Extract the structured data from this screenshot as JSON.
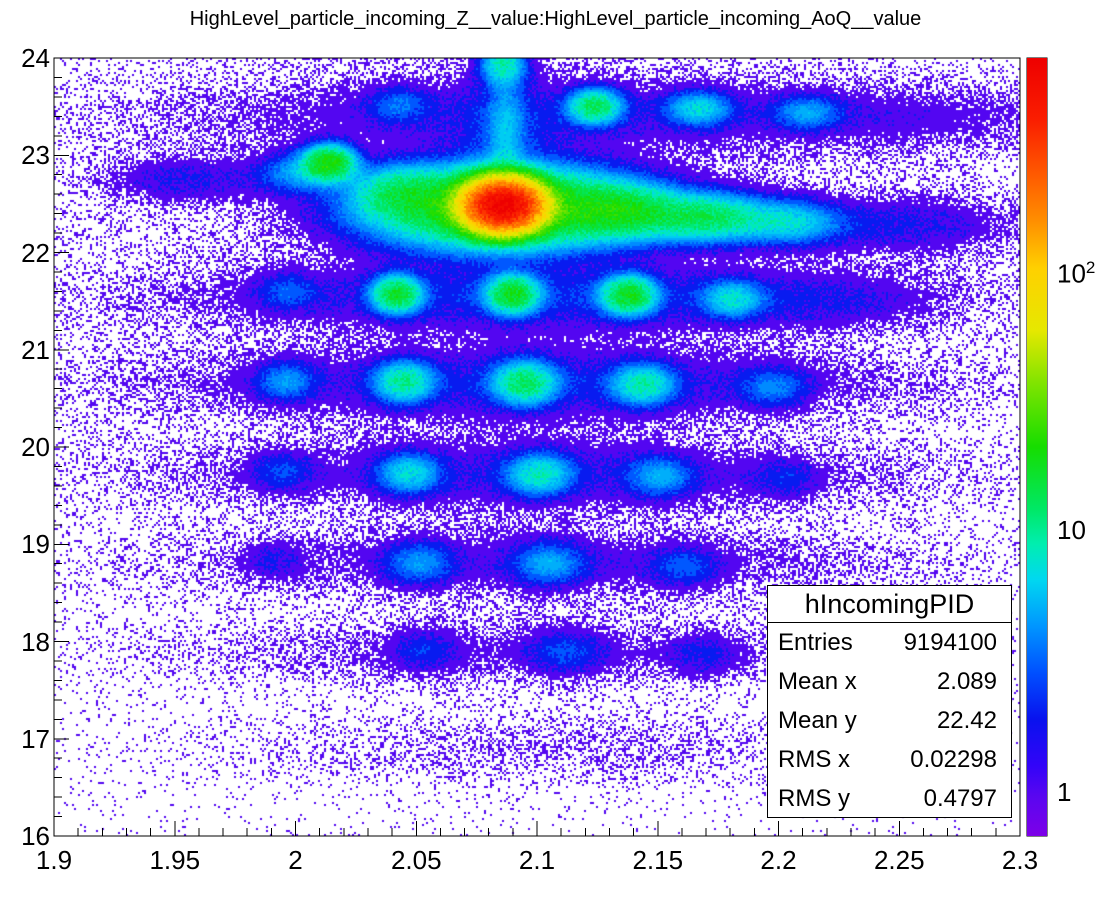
{
  "title": "HighLevel_particle_incoming_Z__value:HighLevel_particle_incoming_AoQ__value",
  "stats_box": {
    "title": "hIncomingPID",
    "rows": [
      {
        "label": "Entries",
        "value": "9194100"
      },
      {
        "label": "Mean x",
        "value": "2.089"
      },
      {
        "label": "Mean y",
        "value": "22.42"
      },
      {
        "label": "RMS x",
        "value": "0.02298"
      },
      {
        "label": "RMS y",
        "value": "0.4797"
      }
    ]
  },
  "chart_data": {
    "type": "heatmap",
    "title": "HighLevel_particle_incoming_Z__value:HighLevel_particle_incoming_AoQ__value",
    "xlabel": "",
    "ylabel": "",
    "x_axis": {
      "min": 1.9,
      "max": 2.3,
      "major_step": 0.05,
      "minor_divisions": 5,
      "labels": [
        "1.9",
        "1.95",
        "2",
        "2.05",
        "2.1",
        "2.15",
        "2.2",
        "2.25",
        "2.3"
      ]
    },
    "y_axis": {
      "min": 16,
      "max": 24,
      "major_step": 1,
      "minor_divisions": 5,
      "labels": [
        "16",
        "17",
        "18",
        "19",
        "20",
        "21",
        "22",
        "23",
        "24"
      ]
    },
    "z_axis": {
      "scale": "log",
      "min": 0.68,
      "max": 630,
      "labels": [
        {
          "text": "1",
          "sup": "",
          "z": 1
        },
        {
          "text": "10",
          "sup": "",
          "z": 10
        },
        {
          "text": "10",
          "sup": "2",
          "z": 100
        }
      ]
    },
    "grid": false,
    "legend_position": "colorbar-right",
    "palette": {
      "stops": [
        [
          0.0,
          "#7d00e8"
        ],
        [
          0.05,
          "#5a06f0"
        ],
        [
          0.09,
          "#3304f8"
        ],
        [
          0.15,
          "#0912ee"
        ],
        [
          0.21,
          "#0050ff"
        ],
        [
          0.27,
          "#0096ff"
        ],
        [
          0.33,
          "#00d8f0"
        ],
        [
          0.375,
          "#00eeb0"
        ],
        [
          0.42,
          "#00e866"
        ],
        [
          0.5,
          "#16dd00"
        ],
        [
          0.58,
          "#7de400"
        ],
        [
          0.65,
          "#e6e800"
        ],
        [
          0.73,
          "#ffd000"
        ],
        [
          0.79,
          "#ff8f00"
        ],
        [
          0.85,
          "#ff5a00"
        ],
        [
          0.92,
          "#fa1e00"
        ],
        [
          1.0,
          "#ee0000"
        ]
      ]
    },
    "background_rate": 0.022,
    "clusters": [
      {
        "x": 2.086,
        "y": 22.485,
        "peak": 600,
        "sx": 0.0085,
        "sy": 0.135
      },
      {
        "x": 2.086,
        "y": 22.46,
        "peak": 25,
        "sx": 0.032,
        "sy": 0.24
      },
      {
        "x": 2.014,
        "y": 22.92,
        "peak": 20,
        "sx": 0.0065,
        "sy": 0.11
      },
      {
        "x": 2.0,
        "y": 22.82,
        "peak": 4,
        "sx": 0.01,
        "sy": 0.13
      },
      {
        "x": 2.043,
        "y": 22.63,
        "peak": 7,
        "sx": 0.012,
        "sy": 0.16
      },
      {
        "x": 2.135,
        "y": 22.42,
        "peak": 12,
        "sx": 0.014,
        "sy": 0.16
      },
      {
        "x": 2.17,
        "y": 22.36,
        "peak": 12,
        "sx": 0.016,
        "sy": 0.15
      },
      {
        "x": 2.205,
        "y": 22.31,
        "peak": 6,
        "sx": 0.013,
        "sy": 0.14
      },
      {
        "x": 2.25,
        "y": 22.28,
        "peak": 1.6,
        "sx": 0.03,
        "sy": 0.18
      },
      {
        "x": 1.955,
        "y": 22.75,
        "peak": 1.5,
        "sx": 0.02,
        "sy": 0.15
      },
      {
        "x": 2.086,
        "y": 23.93,
        "peak": 8,
        "sx": 0.006,
        "sy": 0.13
      },
      {
        "x": 2.087,
        "y": 23.25,
        "peak": 3.5,
        "sx": 0.0048,
        "sy": 0.38
      },
      {
        "x": 2.086,
        "y": 23.1,
        "peak": 1.3,
        "sx": 0.013,
        "sy": 0.45
      },
      {
        "x": 2.124,
        "y": 23.5,
        "peak": 12,
        "sx": 0.0068,
        "sy": 0.11
      },
      {
        "x": 2.167,
        "y": 23.48,
        "peak": 6,
        "sx": 0.0085,
        "sy": 0.11
      },
      {
        "x": 2.212,
        "y": 23.44,
        "peak": 4,
        "sx": 0.009,
        "sy": 0.11
      },
      {
        "x": 2.1,
        "y": 23.42,
        "peak": 1.1,
        "sx": 0.09,
        "sy": 0.22
      },
      {
        "x": 2.26,
        "y": 23.38,
        "peak": 0.7,
        "sx": 0.045,
        "sy": 0.22
      },
      {
        "x": 2.043,
        "y": 23.52,
        "peak": 2.5,
        "sx": 0.008,
        "sy": 0.12
      },
      {
        "x": 2.042,
        "y": 21.57,
        "peak": 15,
        "sx": 0.0062,
        "sy": 0.115
      },
      {
        "x": 2.09,
        "y": 21.57,
        "peak": 16,
        "sx": 0.0066,
        "sy": 0.12
      },
      {
        "x": 2.138,
        "y": 21.56,
        "peak": 16,
        "sx": 0.0068,
        "sy": 0.12
      },
      {
        "x": 2.181,
        "y": 21.52,
        "peak": 6,
        "sx": 0.008,
        "sy": 0.12
      },
      {
        "x": 1.997,
        "y": 21.6,
        "peak": 2.2,
        "sx": 0.008,
        "sy": 0.12
      },
      {
        "x": 2.1,
        "y": 21.55,
        "peak": 1.6,
        "sx": 0.085,
        "sy": 0.2
      },
      {
        "x": 2.22,
        "y": 21.5,
        "peak": 1.0,
        "sx": 0.03,
        "sy": 0.18
      },
      {
        "x": 1.996,
        "y": 20.68,
        "peak": 3.5,
        "sx": 0.008,
        "sy": 0.13
      },
      {
        "x": 2.045,
        "y": 20.67,
        "peak": 9,
        "sx": 0.0075,
        "sy": 0.13
      },
      {
        "x": 2.095,
        "y": 20.66,
        "peak": 11,
        "sx": 0.008,
        "sy": 0.135
      },
      {
        "x": 2.144,
        "y": 20.64,
        "peak": 8,
        "sx": 0.008,
        "sy": 0.13
      },
      {
        "x": 2.198,
        "y": 20.61,
        "peak": 3,
        "sx": 0.009,
        "sy": 0.13
      },
      {
        "x": 2.1,
        "y": 20.65,
        "peak": 1.4,
        "sx": 0.09,
        "sy": 0.2
      },
      {
        "x": 1.994,
        "y": 19.75,
        "peak": 2,
        "sx": 0.008,
        "sy": 0.13
      },
      {
        "x": 2.047,
        "y": 19.73,
        "peak": 6,
        "sx": 0.008,
        "sy": 0.13
      },
      {
        "x": 2.101,
        "y": 19.72,
        "peak": 7,
        "sx": 0.0085,
        "sy": 0.135
      },
      {
        "x": 2.151,
        "y": 19.7,
        "peak": 4,
        "sx": 0.0085,
        "sy": 0.13
      },
      {
        "x": 2.203,
        "y": 19.67,
        "peak": 1.5,
        "sx": 0.009,
        "sy": 0.13
      },
      {
        "x": 2.1,
        "y": 19.71,
        "peak": 1.1,
        "sx": 0.09,
        "sy": 0.2
      },
      {
        "x": 1.991,
        "y": 18.84,
        "peak": 1.2,
        "sx": 0.008,
        "sy": 0.13
      },
      {
        "x": 2.051,
        "y": 18.81,
        "peak": 3.5,
        "sx": 0.009,
        "sy": 0.14
      },
      {
        "x": 2.105,
        "y": 18.8,
        "peak": 4,
        "sx": 0.009,
        "sy": 0.14
      },
      {
        "x": 2.161,
        "y": 18.77,
        "peak": 2.2,
        "sx": 0.009,
        "sy": 0.13
      },
      {
        "x": 2.1,
        "y": 18.8,
        "peak": 0.9,
        "sx": 0.09,
        "sy": 0.2
      },
      {
        "x": 2.053,
        "y": 17.91,
        "peak": 1.6,
        "sx": 0.009,
        "sy": 0.14
      },
      {
        "x": 2.112,
        "y": 17.89,
        "peak": 2.0,
        "sx": 0.01,
        "sy": 0.15
      },
      {
        "x": 2.169,
        "y": 17.86,
        "peak": 1.3,
        "sx": 0.01,
        "sy": 0.14
      },
      {
        "x": 2.1,
        "y": 17.88,
        "peak": 0.7,
        "sx": 0.09,
        "sy": 0.2
      },
      {
        "x": 2.11,
        "y": 16.9,
        "peak": 0.35,
        "sx": 0.09,
        "sy": 0.22
      },
      {
        "x": 2.09,
        "y": 21.9,
        "peak": 0.35,
        "sx": 0.14,
        "sy": 2.2
      },
      {
        "x": 2.1,
        "y": 20.8,
        "peak": 0.3,
        "sx": 0.05,
        "sy": 1.5
      }
    ],
    "colors": {
      "background": "#ffffff",
      "axis": "#000000",
      "text": "#000000"
    }
  }
}
